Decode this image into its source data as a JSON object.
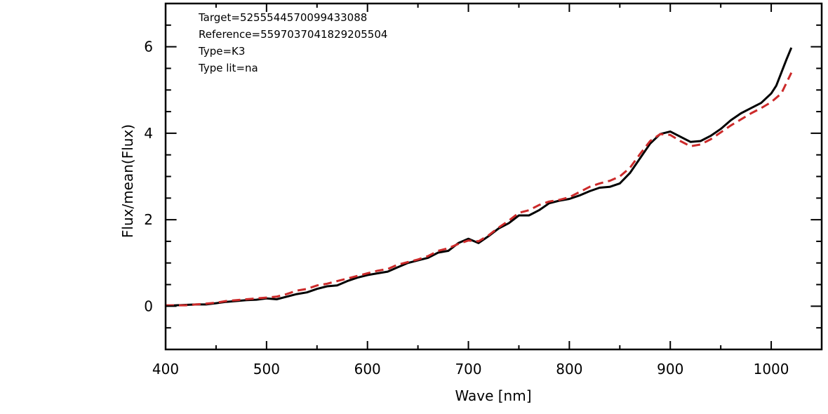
{
  "chart_data": {
    "type": "line",
    "xlabel": "Wave [nm]",
    "ylabel": "Flux/mean(Flux)",
    "xlim": [
      400,
      1050
    ],
    "ylim": [
      -1,
      7
    ],
    "xticks": [
      400,
      500,
      600,
      700,
      800,
      900,
      1000
    ],
    "yticks": [
      0,
      2,
      4,
      6
    ],
    "xtick_labels": [
      "400",
      "500",
      "600",
      "700",
      "800",
      "900",
      "1000"
    ],
    "ytick_labels": [
      "0",
      "2",
      "4",
      "6"
    ],
    "grid": false,
    "annotations": [
      "Target=5255544570099433088",
      "Reference=5597037041829205504",
      "Type=K3",
      "Type lit=na"
    ],
    "series": [
      {
        "style": "solid",
        "color": "#000000",
        "points": [
          [
            400,
            0.01
          ],
          [
            410,
            0.02
          ],
          [
            420,
            0.03
          ],
          [
            430,
            0.04
          ],
          [
            440,
            0.04
          ],
          [
            450,
            0.07
          ],
          [
            460,
            0.1
          ],
          [
            470,
            0.12
          ],
          [
            480,
            0.14
          ],
          [
            490,
            0.15
          ],
          [
            500,
            0.18
          ],
          [
            510,
            0.16
          ],
          [
            520,
            0.22
          ],
          [
            530,
            0.28
          ],
          [
            540,
            0.32
          ],
          [
            550,
            0.4
          ],
          [
            560,
            0.46
          ],
          [
            570,
            0.48
          ],
          [
            580,
            0.58
          ],
          [
            590,
            0.66
          ],
          [
            600,
            0.72
          ],
          [
            610,
            0.76
          ],
          [
            620,
            0.8
          ],
          [
            630,
            0.9
          ],
          [
            640,
            1.0
          ],
          [
            650,
            1.06
          ],
          [
            660,
            1.12
          ],
          [
            670,
            1.24
          ],
          [
            680,
            1.28
          ],
          [
            690,
            1.46
          ],
          [
            700,
            1.56
          ],
          [
            710,
            1.46
          ],
          [
            720,
            1.62
          ],
          [
            730,
            1.8
          ],
          [
            740,
            1.92
          ],
          [
            750,
            2.1
          ],
          [
            760,
            2.1
          ],
          [
            770,
            2.22
          ],
          [
            780,
            2.38
          ],
          [
            790,
            2.44
          ],
          [
            800,
            2.48
          ],
          [
            810,
            2.56
          ],
          [
            820,
            2.66
          ],
          [
            830,
            2.74
          ],
          [
            840,
            2.76
          ],
          [
            850,
            2.84
          ],
          [
            860,
            3.08
          ],
          [
            870,
            3.42
          ],
          [
            880,
            3.76
          ],
          [
            890,
            3.98
          ],
          [
            900,
            4.04
          ],
          [
            910,
            3.92
          ],
          [
            920,
            3.8
          ],
          [
            930,
            3.82
          ],
          [
            940,
            3.94
          ],
          [
            950,
            4.1
          ],
          [
            960,
            4.3
          ],
          [
            970,
            4.46
          ],
          [
            980,
            4.58
          ],
          [
            990,
            4.7
          ],
          [
            1000,
            4.92
          ],
          [
            1005,
            5.1
          ],
          [
            1010,
            5.4
          ],
          [
            1015,
            5.7
          ],
          [
            1020,
            5.98
          ]
        ]
      },
      {
        "style": "dashed",
        "color": "#cc2a2a",
        "points": [
          [
            400,
            0.02
          ],
          [
            410,
            0.02
          ],
          [
            420,
            0.02
          ],
          [
            430,
            0.04
          ],
          [
            440,
            0.06
          ],
          [
            450,
            0.08
          ],
          [
            460,
            0.12
          ],
          [
            470,
            0.14
          ],
          [
            480,
            0.16
          ],
          [
            490,
            0.18
          ],
          [
            500,
            0.2
          ],
          [
            510,
            0.22
          ],
          [
            520,
            0.28
          ],
          [
            530,
            0.36
          ],
          [
            540,
            0.4
          ],
          [
            550,
            0.48
          ],
          [
            560,
            0.52
          ],
          [
            570,
            0.58
          ],
          [
            580,
            0.64
          ],
          [
            590,
            0.7
          ],
          [
            600,
            0.76
          ],
          [
            610,
            0.82
          ],
          [
            620,
            0.86
          ],
          [
            630,
            0.96
          ],
          [
            640,
            1.02
          ],
          [
            650,
            1.08
          ],
          [
            660,
            1.16
          ],
          [
            670,
            1.28
          ],
          [
            680,
            1.34
          ],
          [
            690,
            1.44
          ],
          [
            700,
            1.52
          ],
          [
            710,
            1.5
          ],
          [
            720,
            1.64
          ],
          [
            730,
            1.82
          ],
          [
            740,
            1.98
          ],
          [
            750,
            2.16
          ],
          [
            760,
            2.22
          ],
          [
            770,
            2.34
          ],
          [
            780,
            2.42
          ],
          [
            790,
            2.46
          ],
          [
            800,
            2.52
          ],
          [
            810,
            2.64
          ],
          [
            820,
            2.76
          ],
          [
            830,
            2.84
          ],
          [
            840,
            2.9
          ],
          [
            850,
            3.0
          ],
          [
            860,
            3.2
          ],
          [
            870,
            3.52
          ],
          [
            880,
            3.82
          ],
          [
            890,
            3.98
          ],
          [
            900,
            3.96
          ],
          [
            910,
            3.82
          ],
          [
            920,
            3.7
          ],
          [
            930,
            3.74
          ],
          [
            940,
            3.86
          ],
          [
            950,
            4.02
          ],
          [
            960,
            4.18
          ],
          [
            970,
            4.32
          ],
          [
            980,
            4.46
          ],
          [
            990,
            4.58
          ],
          [
            1000,
            4.72
          ],
          [
            1010,
            4.92
          ],
          [
            1020,
            5.4
          ]
        ]
      }
    ]
  }
}
